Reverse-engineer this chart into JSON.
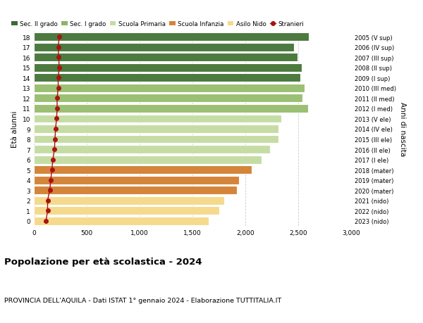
{
  "ages": [
    0,
    1,
    2,
    3,
    4,
    5,
    6,
    7,
    8,
    9,
    10,
    11,
    12,
    13,
    14,
    15,
    16,
    17,
    18
  ],
  "bar_values": [
    1650,
    1750,
    1800,
    1920,
    1940,
    2060,
    2150,
    2230,
    2310,
    2310,
    2340,
    2590,
    2540,
    2560,
    2520,
    2530,
    2490,
    2460,
    2600
  ],
  "stranieri_values": [
    115,
    130,
    130,
    150,
    160,
    170,
    180,
    195,
    200,
    205,
    215,
    220,
    220,
    230,
    230,
    240,
    235,
    230,
    240
  ],
  "right_labels": [
    "2023 (nido)",
    "2022 (nido)",
    "2021 (nido)",
    "2020 (mater)",
    "2019 (mater)",
    "2018 (mater)",
    "2017 (I ele)",
    "2016 (II ele)",
    "2015 (III ele)",
    "2014 (IV ele)",
    "2013 (V ele)",
    "2012 (I med)",
    "2011 (II med)",
    "2010 (III med)",
    "2009 (I sup)",
    "2008 (II sup)",
    "2007 (III sup)",
    "2006 (IV sup)",
    "2005 (V sup)"
  ],
  "bar_colors": [
    "#F5D98C",
    "#F5D98C",
    "#F5D98C",
    "#D4853A",
    "#D4853A",
    "#D4853A",
    "#C5DDA4",
    "#C5DDA4",
    "#C5DDA4",
    "#C5DDA4",
    "#C5DDA4",
    "#9BBF73",
    "#9BBF73",
    "#9BBF73",
    "#4C7A3F",
    "#4C7A3F",
    "#4C7A3F",
    "#4C7A3F",
    "#4C7A3F"
  ],
  "legend_labels": [
    "Sec. II grado",
    "Sec. I grado",
    "Scuola Primaria",
    "Scuola Infanzia",
    "Asilo Nido",
    "Stranieri"
  ],
  "legend_colors": [
    "#3D6B35",
    "#8AB564",
    "#C5DDA4",
    "#D4853A",
    "#F5D98C",
    "#AA1111"
  ],
  "stranieri_color": "#AA1111",
  "ylabel": "Età alunni",
  "right_ylabel": "Anni di nascita",
  "title": "Popolazione per età scolastica - 2024",
  "subtitle": "PROVINCIA DELL'AQUILA - Dati ISTAT 1° gennaio 2024 - Elaborazione TUTTITALIA.IT",
  "xlim": [
    0,
    3000
  ],
  "xticks": [
    0,
    500,
    1000,
    1500,
    2000,
    2500,
    3000
  ],
  "xtick_labels": [
    "0",
    "500",
    "1,000",
    "1,500",
    "2,000",
    "2,500",
    "3,000"
  ],
  "background_color": "#FFFFFF",
  "grid_color": "#CCCCCC"
}
